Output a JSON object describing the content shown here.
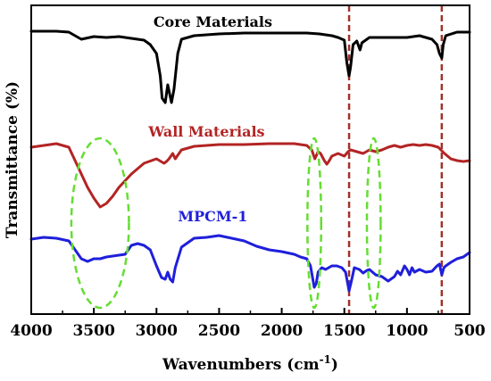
{
  "chart_data": {
    "type": "line",
    "xlabel": "Wavenumbers (cm",
    "xlabel_superscript": "-1",
    "xlabel_suffix": ")",
    "ylabel": "Transmittance (%)",
    "xlim": [
      4000,
      500
    ],
    "x_reversed": true,
    "xticks": [
      4000,
      3500,
      3000,
      2500,
      2000,
      1500,
      1000,
      500
    ],
    "yticks_shown": false,
    "grid": false,
    "legend": "none",
    "series": [
      {
        "name": "Core Materials",
        "color": "#000000",
        "points": [
          [
            4000,
            35
          ],
          [
            3800,
            35
          ],
          [
            3700,
            36
          ],
          [
            3600,
            44
          ],
          [
            3500,
            41
          ],
          [
            3400,
            42
          ],
          [
            3300,
            41
          ],
          [
            3200,
            43
          ],
          [
            3100,
            45
          ],
          [
            3050,
            50
          ],
          [
            3000,
            60
          ],
          [
            2970,
            85
          ],
          [
            2955,
            110
          ],
          [
            2930,
            115
          ],
          [
            2910,
            95
          ],
          [
            2880,
            115
          ],
          [
            2860,
            100
          ],
          [
            2830,
            60
          ],
          [
            2800,
            44
          ],
          [
            2700,
            40
          ],
          [
            2500,
            38
          ],
          [
            2300,
            37
          ],
          [
            2000,
            37
          ],
          [
            1800,
            37
          ],
          [
            1700,
            38
          ],
          [
            1600,
            40
          ],
          [
            1550,
            42
          ],
          [
            1500,
            45
          ],
          [
            1480,
            70
          ],
          [
            1462,
            85
          ],
          [
            1450,
            75
          ],
          [
            1430,
            50
          ],
          [
            1400,
            46
          ],
          [
            1375,
            56
          ],
          [
            1360,
            48
          ],
          [
            1300,
            42
          ],
          [
            1200,
            42
          ],
          [
            1100,
            42
          ],
          [
            1000,
            42
          ],
          [
            900,
            40
          ],
          [
            800,
            44
          ],
          [
            760,
            50
          ],
          [
            740,
            60
          ],
          [
            722,
            65
          ],
          [
            710,
            50
          ],
          [
            690,
            40
          ],
          [
            600,
            36
          ],
          [
            500,
            36
          ]
        ]
      },
      {
        "name": "Wall Materials",
        "color": "#b32424",
        "points": [
          [
            4000,
            165
          ],
          [
            3800,
            161
          ],
          [
            3700,
            165
          ],
          [
            3650,
            180
          ],
          [
            3600,
            195
          ],
          [
            3550,
            210
          ],
          [
            3500,
            222
          ],
          [
            3450,
            232
          ],
          [
            3400,
            228
          ],
          [
            3350,
            220
          ],
          [
            3300,
            210
          ],
          [
            3200,
            195
          ],
          [
            3100,
            183
          ],
          [
            3000,
            178
          ],
          [
            2940,
            183
          ],
          [
            2920,
            181
          ],
          [
            2900,
            178
          ],
          [
            2870,
            172
          ],
          [
            2850,
            178
          ],
          [
            2800,
            168
          ],
          [
            2700,
            164
          ],
          [
            2500,
            162
          ],
          [
            2300,
            162
          ],
          [
            2100,
            161
          ],
          [
            1900,
            161
          ],
          [
            1800,
            163
          ],
          [
            1760,
            168
          ],
          [
            1735,
            178
          ],
          [
            1710,
            170
          ],
          [
            1690,
            172
          ],
          [
            1660,
            180
          ],
          [
            1640,
            184
          ],
          [
            1620,
            180
          ],
          [
            1600,
            175
          ],
          [
            1550,
            172
          ],
          [
            1500,
            175
          ],
          [
            1470,
            170
          ],
          [
            1450,
            168
          ],
          [
            1400,
            170
          ],
          [
            1350,
            172
          ],
          [
            1300,
            168
          ],
          [
            1250,
            170
          ],
          [
            1200,
            168
          ],
          [
            1150,
            165
          ],
          [
            1100,
            163
          ],
          [
            1050,
            165
          ],
          [
            1000,
            163
          ],
          [
            950,
            162
          ],
          [
            900,
            163
          ],
          [
            850,
            162
          ],
          [
            800,
            163
          ],
          [
            750,
            165
          ],
          [
            700,
            172
          ],
          [
            650,
            178
          ],
          [
            600,
            180
          ],
          [
            550,
            181
          ],
          [
            500,
            180
          ]
        ]
      },
      {
        "name": "MPCM-1",
        "color": "#1f1fdb",
        "points": [
          [
            4000,
            268
          ],
          [
            3900,
            266
          ],
          [
            3800,
            267
          ],
          [
            3700,
            270
          ],
          [
            3650,
            280
          ],
          [
            3600,
            290
          ],
          [
            3550,
            293
          ],
          [
            3500,
            290
          ],
          [
            3450,
            290
          ],
          [
            3400,
            288
          ],
          [
            3350,
            287
          ],
          [
            3300,
            286
          ],
          [
            3250,
            285
          ],
          [
            3200,
            275
          ],
          [
            3150,
            273
          ],
          [
            3100,
            275
          ],
          [
            3050,
            280
          ],
          [
            3000,
            298
          ],
          [
            2960,
            311
          ],
          [
            2930,
            313
          ],
          [
            2910,
            305
          ],
          [
            2890,
            313
          ],
          [
            2870,
            316
          ],
          [
            2850,
            300
          ],
          [
            2800,
            277
          ],
          [
            2700,
            267
          ],
          [
            2600,
            266
          ],
          [
            2500,
            264
          ],
          [
            2400,
            267
          ],
          [
            2300,
            270
          ],
          [
            2200,
            276
          ],
          [
            2100,
            280
          ],
          [
            2000,
            282
          ],
          [
            1900,
            285
          ],
          [
            1850,
            288
          ],
          [
            1800,
            290
          ],
          [
            1770,
            298
          ],
          [
            1740,
            322
          ],
          [
            1725,
            318
          ],
          [
            1710,
            305
          ],
          [
            1680,
            300
          ],
          [
            1650,
            302
          ],
          [
            1600,
            298
          ],
          [
            1560,
            298
          ],
          [
            1520,
            300
          ],
          [
            1490,
            305
          ],
          [
            1462,
            326
          ],
          [
            1445,
            316
          ],
          [
            1420,
            300
          ],
          [
            1380,
            302
          ],
          [
            1350,
            306
          ],
          [
            1320,
            303
          ],
          [
            1300,
            302
          ],
          [
            1250,
            308
          ],
          [
            1200,
            310
          ],
          [
            1150,
            315
          ],
          [
            1100,
            310
          ],
          [
            1075,
            304
          ],
          [
            1050,
            308
          ],
          [
            1020,
            298
          ],
          [
            1000,
            302
          ],
          [
            980,
            308
          ],
          [
            960,
            300
          ],
          [
            940,
            305
          ],
          [
            900,
            302
          ],
          [
            850,
            305
          ],
          [
            800,
            304
          ],
          [
            760,
            298
          ],
          [
            740,
            296
          ],
          [
            722,
            308
          ],
          [
            705,
            300
          ],
          [
            690,
            298
          ],
          [
            650,
            294
          ],
          [
            600,
            290
          ],
          [
            550,
            288
          ],
          [
            500,
            283
          ]
        ]
      }
    ],
    "labels": [
      {
        "text": "Core Materials",
        "series": "Core Materials",
        "x": 2550
      },
      {
        "text": "Wall Materials",
        "series": "Wall Materials",
        "x": 2600
      },
      {
        "text": "MPCM-1",
        "series": "MPCM-1",
        "x": 2550
      }
    ],
    "vertical_markers": [
      {
        "x": 1462,
        "color": "#a0322a",
        "style": "dashed"
      },
      {
        "x": 722,
        "color": "#a0322a",
        "style": "dashed"
      }
    ],
    "highlight_ellipses": [
      {
        "cx": 3450,
        "rx_wn": 230,
        "color": "#66dd33"
      },
      {
        "cx": 1740,
        "rx_wn": 55,
        "color": "#66dd33"
      },
      {
        "cx": 1265,
        "rx_wn": 55,
        "color": "#66dd33"
      }
    ]
  }
}
